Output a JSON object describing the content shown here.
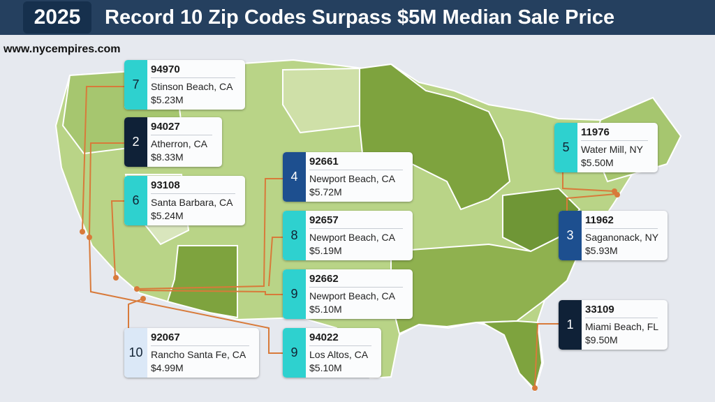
{
  "header": {
    "year": "2025",
    "title": "Record 10 Zip Codes Surpass $5M Median Sale Price"
  },
  "watermark": "www.nycempires.com",
  "colors": {
    "banner": "#25405f",
    "year_box": "#16304d",
    "leader_line": "#d87a3a",
    "rank_dark": "#0f2137",
    "rank_blue": "#1d4f8f",
    "rank_teal": "#2ed1cf",
    "rank_light": "#dbe8f7"
  },
  "cards": [
    {
      "rank": "7",
      "zip": "94970",
      "city": "Stinson Beach, CA",
      "price": "$5.23M",
      "tone": "teal"
    },
    {
      "rank": "2",
      "zip": "94027",
      "city": "Atherron, CA",
      "price": "$8.33M",
      "tone": "dark"
    },
    {
      "rank": "6",
      "zip": "93108",
      "city": "Santa Barbara, CA",
      "price": "$5.24M",
      "tone": "teal"
    },
    {
      "rank": "4",
      "zip": "92661",
      "city": "Newport Beach, CA",
      "price": "$5.72M",
      "tone": "blue"
    },
    {
      "rank": "8",
      "zip": "92657",
      "city": "Newport Beach, CA",
      "price": "$5.19M",
      "tone": "teal"
    },
    {
      "rank": "9",
      "zip": "92662",
      "city": "Newport Beach, CA",
      "price": "$5.10M",
      "tone": "teal"
    },
    {
      "rank": "9",
      "zip": "94022",
      "city": "Los Altos, CA",
      "price": "$5.10M",
      "tone": "teal"
    },
    {
      "rank": "10",
      "zip": "92067",
      "city": "Rancho Santa Fe, CA",
      "price": "$4.99M",
      "tone": "light"
    },
    {
      "rank": "5",
      "zip": "11976",
      "city": "Water Mill, NY",
      "price": "$5.50M",
      "tone": "teal"
    },
    {
      "rank": "3",
      "zip": "11962",
      "city": "Saganonack, NY",
      "price": "$5.93M",
      "tone": "blue"
    },
    {
      "rank": "1",
      "zip": "33109",
      "city": "Miami Beach, FL",
      "price": "$9.50M",
      "tone": "dark"
    }
  ]
}
